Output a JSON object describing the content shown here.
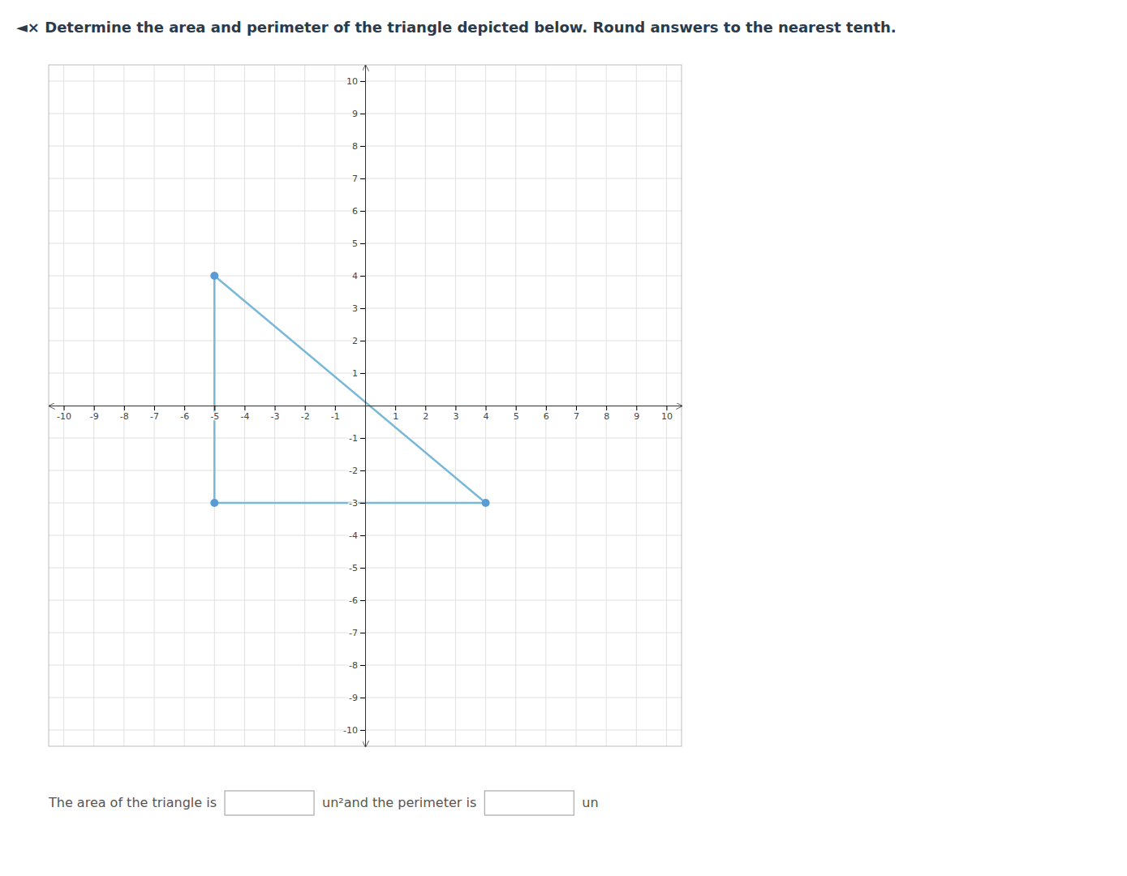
{
  "chart_data": {
    "type": "polygon",
    "title": "◄× Determine the area and perimeter of the triangle depicted below. Round answers to the nearest tenth.",
    "x": [
      -5,
      -5,
      4
    ],
    "series": [
      {
        "type": "polygon",
        "color": "#7ab8d9",
        "values": [
          4,
          -3,
          -3
        ]
      },
      {
        "type": "scatter",
        "color": "#5b9bd5",
        "marker": "circle",
        "values": [
          4,
          -3,
          -3
        ]
      }
    ],
    "xlim": [
      -10.5,
      10.5
    ],
    "ylim": [
      -10.5,
      10.5
    ],
    "xticks": [
      -10,
      -9,
      -8,
      -7,
      -6,
      -5,
      -4,
      -3,
      -2,
      -1,
      1,
      2,
      3,
      4,
      5,
      6,
      7,
      8,
      9,
      10
    ],
    "yticks": [
      -10,
      -9,
      -8,
      -7,
      -6,
      -5,
      -4,
      -3,
      -2,
      -1,
      1,
      2,
      3,
      4,
      5,
      6,
      7,
      8,
      9,
      10
    ],
    "grid": true,
    "annotations": [
      "The area of the triangle is",
      "un²and the perimeter is",
      "un"
    ]
  }
}
